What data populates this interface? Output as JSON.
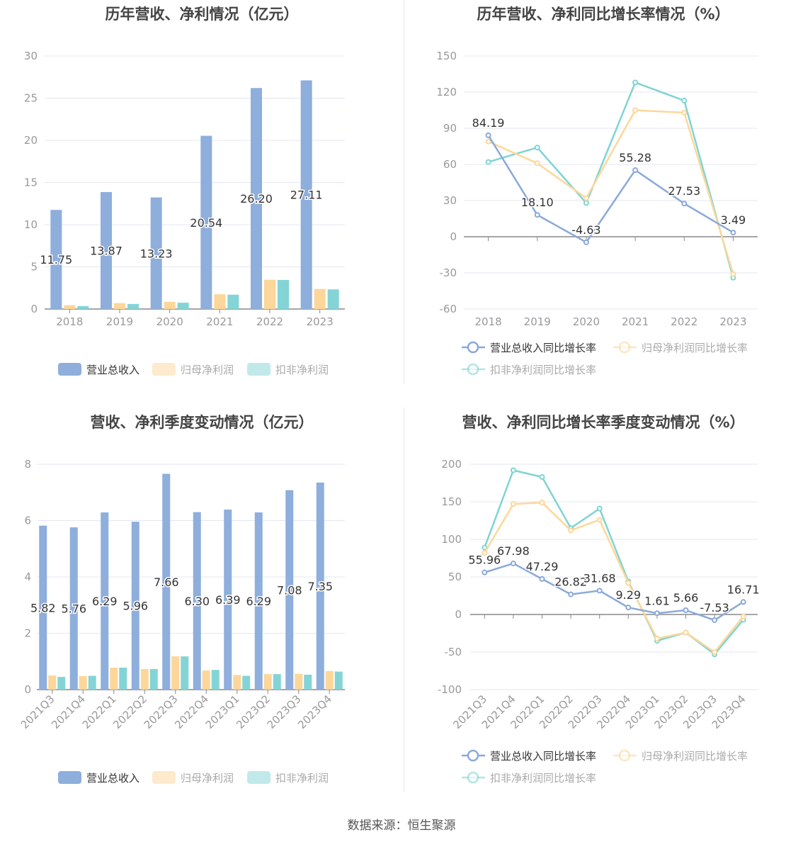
{
  "colors": {
    "revenue": "#8eaedc",
    "net_profit": "#fdd69a",
    "deducted_profit": "#84d4d6",
    "revenue_line": "#8aa9da",
    "net_profit_line": "#fed799",
    "deducted_profit_line": "#7fd4d4"
  },
  "footer": "数据来源：恒生聚源",
  "chart_data": [
    {
      "type": "bar",
      "title": "历年营收、净利情况（亿元）",
      "categories": [
        "2018",
        "2019",
        "2020",
        "2021",
        "2022",
        "2023"
      ],
      "ylim": [
        0,
        30
      ],
      "yticks": [
        "0",
        "5",
        "10",
        "15",
        "20",
        "25",
        "30"
      ],
      "grid": true,
      "legend": "bottom",
      "series": [
        {
          "name": "营业总收入",
          "values": [
            11.75,
            13.87,
            13.23,
            20.54,
            26.2,
            27.11
          ],
          "labels": [
            "11.75",
            "13.87",
            "13.23",
            "20.54",
            "26.20",
            "27.11"
          ]
        },
        {
          "name": "归母净利润",
          "values": [
            0.45,
            0.7,
            0.85,
            1.75,
            3.47,
            2.38
          ]
        },
        {
          "name": "扣非净利润",
          "values": [
            0.35,
            0.6,
            0.75,
            1.7,
            3.45,
            2.33
          ]
        }
      ]
    },
    {
      "type": "line",
      "title": "历年营收、净利同比增长率情况（%）",
      "categories": [
        "2018",
        "2019",
        "2020",
        "2021",
        "2022",
        "2023"
      ],
      "ylim": [
        -60,
        150
      ],
      "yticks": [
        "-60",
        "-30",
        "0",
        "30",
        "60",
        "90",
        "120",
        "150"
      ],
      "grid": true,
      "legend": "bottom",
      "series": [
        {
          "name": "营业总收入同比增长率",
          "values": [
            84.19,
            18.1,
            -4.63,
            55.28,
            27.53,
            3.49
          ],
          "labels": [
            "84.19",
            "18.10",
            "-4.63",
            "55.28",
            "27.53",
            "3.49"
          ]
        },
        {
          "name": "归母净利润同比增长率",
          "values": [
            79,
            61,
            32,
            105,
            103,
            -31
          ]
        },
        {
          "name": "扣非净利润同比增长率",
          "values": [
            62,
            74,
            28,
            128,
            113,
            -34
          ]
        }
      ]
    },
    {
      "type": "bar",
      "title": "营收、净利季度变动情况（亿元）",
      "categories": [
        "2021Q3",
        "2021Q4",
        "2022Q1",
        "2022Q2",
        "2022Q3",
        "2022Q4",
        "2023Q1",
        "2023Q2",
        "2023Q3",
        "2023Q4"
      ],
      "ylim": [
        0,
        8
      ],
      "yticks": [
        "0",
        "2",
        "4",
        "6",
        "8"
      ],
      "grid": true,
      "legend": "bottom",
      "series": [
        {
          "name": "营业总收入",
          "values": [
            5.82,
            5.76,
            6.29,
            5.96,
            7.66,
            6.3,
            6.39,
            6.29,
            7.08,
            7.35
          ],
          "labels": [
            "5.82",
            "5.76",
            "6.29",
            "5.96",
            "7.66",
            "6.30",
            "6.39",
            "6.29",
            "7.08",
            "7.35"
          ]
        },
        {
          "name": "归母净利润",
          "values": [
            0.5,
            0.48,
            0.78,
            0.73,
            1.18,
            0.68,
            0.52,
            0.55,
            0.56,
            0.66
          ]
        },
        {
          "name": "扣非净利润",
          "values": [
            0.45,
            0.49,
            0.78,
            0.73,
            1.18,
            0.7,
            0.49,
            0.55,
            0.53,
            0.64
          ]
        }
      ]
    },
    {
      "type": "line",
      "title": "营收、净利同比增长率季度变动情况（%）",
      "categories": [
        "2021Q3",
        "2021Q4",
        "2022Q1",
        "2022Q2",
        "2022Q3",
        "2022Q4",
        "2023Q1",
        "2023Q2",
        "2023Q3",
        "2023Q4"
      ],
      "ylim": [
        -100,
        200
      ],
      "yticks": [
        "-100",
        "-50",
        "0",
        "50",
        "100",
        "150",
        "200"
      ],
      "grid": true,
      "legend": "bottom",
      "series": [
        {
          "name": "营业总收入同比增长率",
          "values": [
            55.96,
            67.98,
            47.29,
            26.82,
            31.68,
            9.29,
            1.61,
            5.66,
            -7.53,
            16.71
          ],
          "labels": [
            "55.96",
            "67.98",
            "47.29",
            "26.82",
            "31.68",
            "9.29",
            "1.61",
            "5.66",
            "-7.53",
            "16.71"
          ]
        },
        {
          "name": "归母净利润同比增长率",
          "values": [
            82,
            147,
            149,
            112,
            126,
            42,
            -32,
            -24,
            -50,
            -2.5
          ]
        },
        {
          "name": "扣非净利润同比增长率",
          "values": [
            89,
            192,
            183,
            115,
            141,
            44,
            -35,
            -24,
            -53,
            -7
          ]
        }
      ]
    }
  ]
}
